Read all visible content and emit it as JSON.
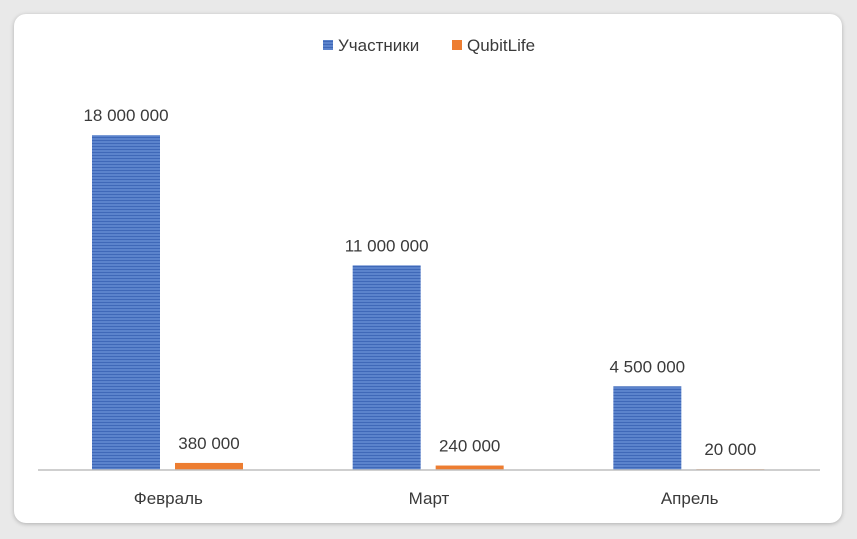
{
  "chart_data": {
    "type": "bar",
    "categories": [
      "Февраль",
      "Март",
      "Апрель"
    ],
    "series": [
      {
        "name": "Участники",
        "values": [
          18000000,
          11000000,
          4500000
        ],
        "labels": [
          "18 000 000",
          "11 000 000",
          "4 500 000"
        ],
        "color": "#4472c4"
      },
      {
        "name": "QubitLife",
        "values": [
          380000,
          240000,
          20000
        ],
        "labels": [
          "380 000",
          "240 000",
          "20 000"
        ],
        "color": "#ed7d31"
      }
    ],
    "ylim": [
      0,
      20000000
    ],
    "grid": false,
    "legend": "top-center",
    "title": "",
    "xlabel": "",
    "ylabel": ""
  }
}
